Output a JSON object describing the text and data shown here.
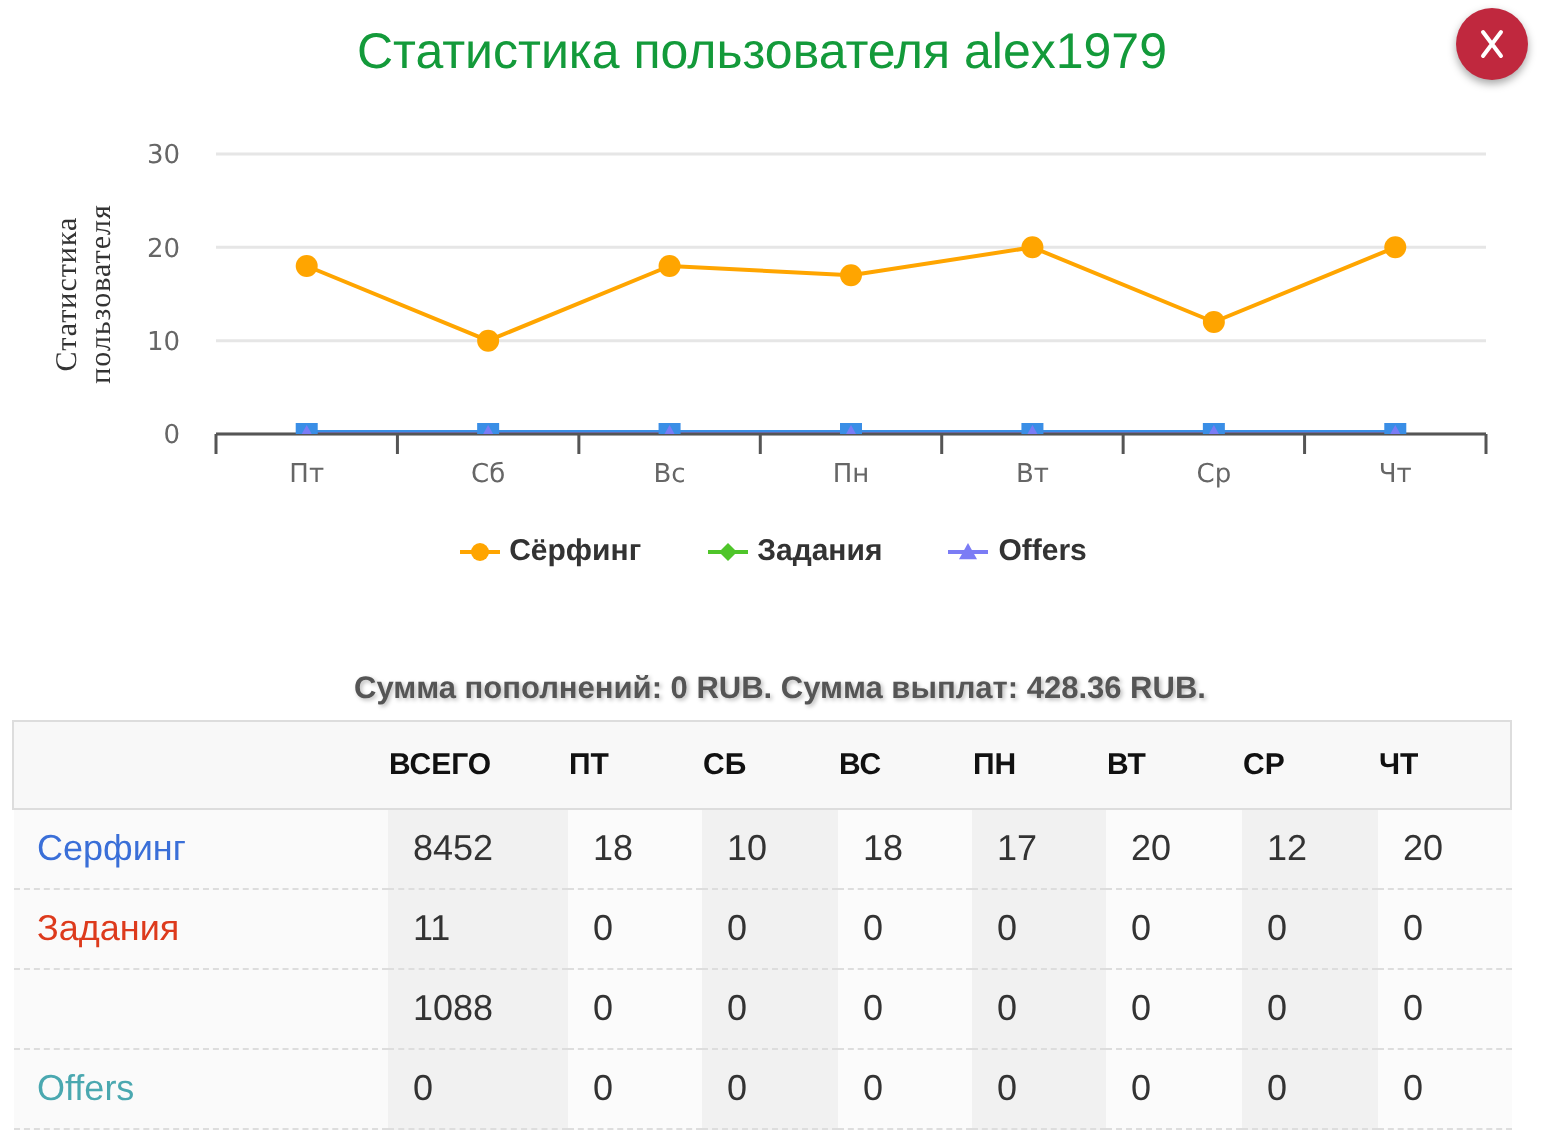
{
  "chart_data": [
    {
      "type": "line",
      "title": "Статистика пользователя alex1979",
      "ylabel": "Статистика пользователя",
      "categories": [
        "Пт",
        "Сб",
        "Вс",
        "Пн",
        "Вт",
        "Ср",
        "Чт"
      ],
      "series": [
        {
          "name": "Сёрфинг",
          "color": "#ffa500",
          "marker": "circle",
          "values": [
            18,
            10,
            18,
            17,
            20,
            12,
            20
          ]
        },
        {
          "name": "Задания",
          "color": "#4fc52a",
          "marker": "diamond",
          "values": [
            null,
            null,
            null,
            null,
            null,
            null,
            null
          ]
        },
        {
          "color": "#3a8ee6",
          "marker": "square",
          "values": [
            0,
            0,
            0,
            0,
            0,
            0,
            0
          ]
        },
        {
          "name": "Offers",
          "color": "#7b7cf5",
          "marker": "triangle",
          "values": [
            0,
            0,
            0,
            0,
            0,
            0,
            0
          ]
        }
      ],
      "ylim": [
        0,
        30
      ],
      "yticks": [
        0,
        10,
        20,
        30
      ],
      "grid": "y",
      "legend": "bottom",
      "line_style": "solid"
    },
    {
      "type": "heatmap",
      "title": "Сумма пополнений: 0 RUB. Сумма выплат: 428.36 RUB.",
      "categories": [
        "ВСЕГО",
        "ПТ",
        "СБ",
        "ВС",
        "ПН",
        "ВТ",
        "СР",
        "ЧТ"
      ],
      "y_categories": [
        "Серфинг",
        "Задания",
        null,
        "Offers"
      ],
      "cells": [
        [
          8452,
          18,
          10,
          18,
          17,
          20,
          12,
          20
        ],
        [
          11,
          0,
          0,
          0,
          0,
          0,
          0,
          0
        ],
        [
          1088,
          0,
          0,
          0,
          0,
          0,
          0,
          0
        ],
        [
          0,
          0,
          0,
          0,
          0,
          0,
          0,
          0
        ]
      ],
      "data_labels": true
    }
  ]
}
